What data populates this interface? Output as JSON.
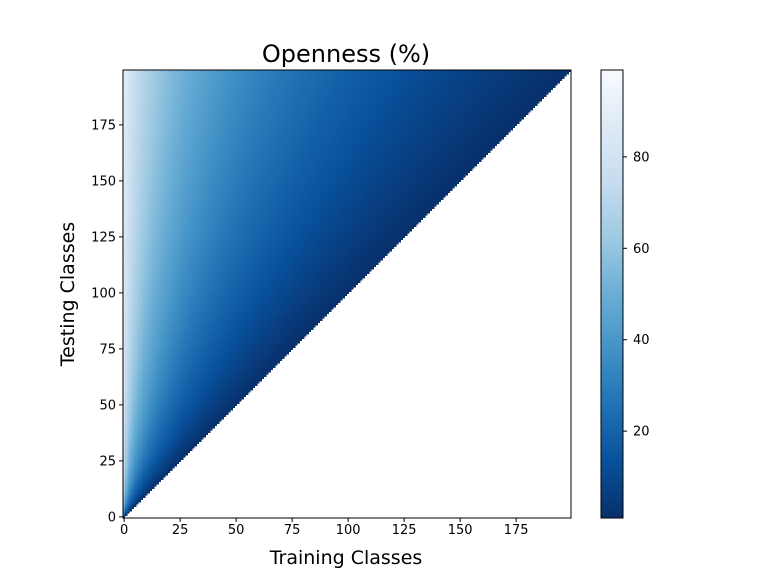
{
  "chart_data": {
    "type": "heatmap",
    "title": "Openness (%)",
    "xlabel": "Training Classes",
    "ylabel": "Testing Classes",
    "x_ticks": [
      0,
      25,
      50,
      75,
      100,
      125,
      150,
      175
    ],
    "y_ticks": [
      0,
      25,
      50,
      75,
      100,
      125,
      150,
      175
    ],
    "xlim": [
      0,
      200
    ],
    "ylim": [
      0,
      200
    ],
    "colormap": "Blues_r",
    "colorbar": {
      "ticks": [
        20,
        40,
        60,
        80
      ],
      "range": [
        0,
        100
      ]
    },
    "function": "openness = 100 * (1 - sqrt(2*training/(training+testing))), defined where training <= testing",
    "undefined_region": "white (training > testing)",
    "grid": false
  },
  "colors": {
    "cmap": [
      "#08306b",
      "#08519c",
      "#2171b5",
      "#4292c6",
      "#6baed6",
      "#9ecae1",
      "#c6dbef",
      "#deebf7",
      "#f7fbff"
    ],
    "frame": "#000000",
    "background": "#ffffff"
  }
}
